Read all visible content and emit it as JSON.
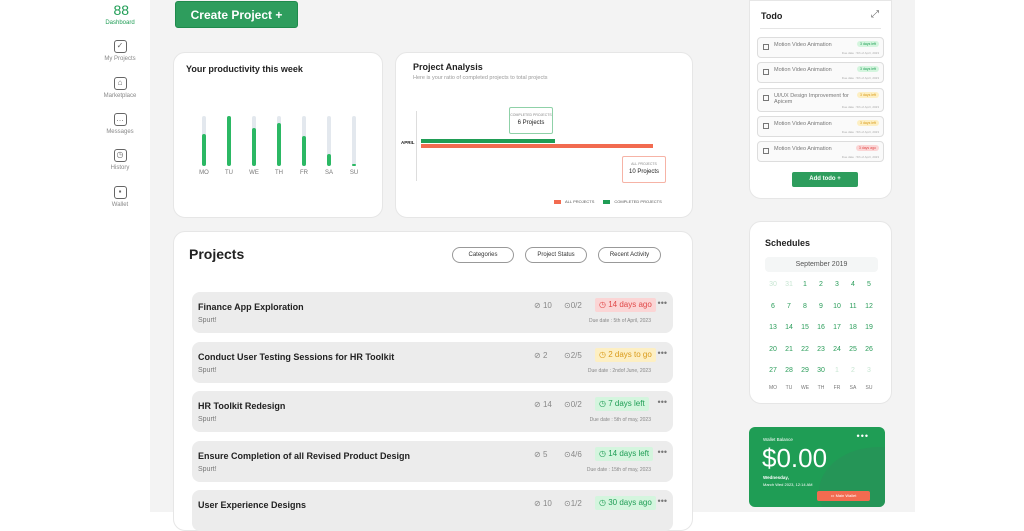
{
  "sidebar": {
    "items": [
      {
        "label": "Dashboard",
        "icon": "dashboard-icon",
        "active": true
      },
      {
        "label": "My Projects",
        "icon": "check-square-icon"
      },
      {
        "label": "Marketplace",
        "icon": "store-icon"
      },
      {
        "label": "Messages",
        "icon": "message-icon"
      },
      {
        "label": "History",
        "icon": "clock-icon"
      },
      {
        "label": "Wallet",
        "icon": "wallet-icon"
      }
    ]
  },
  "create_button": "Create Project +",
  "productivity": {
    "title": "Your productivity this week",
    "days": [
      "MO",
      "TU",
      "WE",
      "TH",
      "FR",
      "SA",
      "SU"
    ],
    "levels": [
      0.65,
      1.0,
      0.77,
      0.87,
      0.6,
      0.25,
      0.05
    ],
    "color": "#2bb864"
  },
  "analysis": {
    "title": "Project Analysis",
    "subtitle": "Here is  your ratio of  completed projects to total projects",
    "row_label": "APRIL",
    "completed_tip_label": "COMPLETED PROJECTS",
    "completed_tip_value": "6 Projects",
    "all_tip_label": "ALL PROJECTS",
    "all_tip_value": "10 Projects",
    "completed": 6,
    "all": 10,
    "legend": [
      "ALL PROJECTS",
      "COMPLETED PROJECTS"
    ],
    "colors": {
      "all": "#f26b50",
      "completed": "#1f9d55"
    }
  },
  "projects": {
    "title": "Projects",
    "filters": [
      "Categories",
      "Project Status",
      "Recent Activity"
    ],
    "rows": [
      {
        "title": "Finance App Exploration",
        "owner": "Spurt!",
        "attachments": "10",
        "tasks": "0/2",
        "badge": "14 days ago",
        "status": "overdue",
        "due": "Due date : 5th of April, 2023"
      },
      {
        "title": "Conduct User Testing Sessions for HR Toolkit",
        "owner": "Spurt!",
        "attachments": "2",
        "tasks": "2/5",
        "badge": "2 days to go",
        "status": "soon",
        "due": "Due date : 2ndof June, 2023"
      },
      {
        "title": "HR Toolkit Redesign",
        "owner": "Spurt!",
        "attachments": "14",
        "tasks": "0/2",
        "badge": "7 days left",
        "status": "ok",
        "due": "Due date : 5th of may, 2023"
      },
      {
        "title": "Ensure Completion of all  Revised Product Design",
        "owner": "Spurt!",
        "attachments": "5",
        "tasks": "4/6",
        "badge": "14 days left",
        "status": "ok",
        "due": "Due date : 15th of may, 2023"
      },
      {
        "title": "User Experience Designs",
        "owner": "",
        "attachments": "10",
        "tasks": "1/2",
        "badge": "30 days ago",
        "status": "ok",
        "due": ""
      }
    ]
  },
  "todo": {
    "title": "Todo",
    "add_label": "Add todo +",
    "items": [
      {
        "text": "Motion Video Animation",
        "badge": "3 days left",
        "status": "ok",
        "due": "Due date : 5th of April, 2023"
      },
      {
        "text": "Motion Video Animation",
        "badge": "3 days left",
        "status": "ok",
        "due": "Due date : 5th of April, 2023"
      },
      {
        "text": "UI/UX Design Improvement for Apicem",
        "badge": "3 days left",
        "status": "soon",
        "due": "Due date : 5th of April, 2023"
      },
      {
        "text": "Motion Video Animation",
        "badge": "3 days left",
        "status": "soon",
        "due": "Due date : 5th of April, 2023"
      },
      {
        "text": "Motion Video Animation",
        "badge": "3 days ago",
        "status": "overdue",
        "due": "Due date : 5th of April, 2023"
      }
    ]
  },
  "schedule": {
    "title": "Schedules",
    "month": "September 2019",
    "weeks": [
      [
        "30",
        "31",
        "1",
        "2",
        "3",
        "4",
        "5"
      ],
      [
        "6",
        "7",
        "8",
        "9",
        "10",
        "11",
        "12"
      ],
      [
        "13",
        "14",
        "15",
        "16",
        "17",
        "18",
        "19"
      ],
      [
        "20",
        "21",
        "22",
        "23",
        "24",
        "25",
        "26"
      ],
      [
        "27",
        "28",
        "29",
        "30",
        "1",
        "2",
        "3"
      ]
    ],
    "days": [
      "MO",
      "TU",
      "WE",
      "TH",
      "FR",
      "SA",
      "SU"
    ]
  },
  "wallet": {
    "label": "Wallet Balance",
    "amount": "$0.00",
    "day": "Wednesday,",
    "datetime": "March Wed 2023, 12:14 AM",
    "button": "Main Wallet",
    "color": "#1f9d55"
  }
}
